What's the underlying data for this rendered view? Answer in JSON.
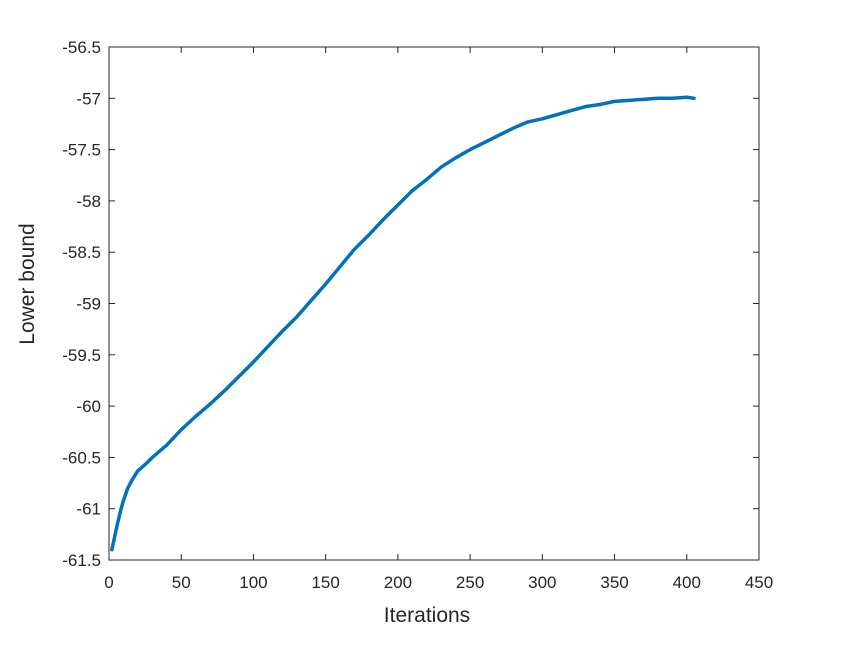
{
  "chart_data": {
    "type": "line",
    "title": "",
    "xlabel": "Iterations",
    "ylabel": "Lower bound",
    "xlim": [
      0,
      450
    ],
    "ylim": [
      -61.5,
      -56.5
    ],
    "xticks": [
      0,
      50,
      100,
      150,
      200,
      250,
      300,
      350,
      400,
      450
    ],
    "yticks": [
      -56.5,
      -57,
      -57.5,
      -58,
      -58.5,
      -59,
      -59.5,
      -60,
      -60.5,
      -61,
      -61.5
    ],
    "xtick_labels": [
      "0",
      "50",
      "100",
      "150",
      "200",
      "250",
      "300",
      "350",
      "400",
      "450"
    ],
    "ytick_labels": [
      "-56.5",
      "-57",
      "-57.5",
      "-58",
      "-58.5",
      "-59",
      "-59.5",
      "-60",
      "-60.5",
      "-61",
      "-61.5"
    ],
    "grid": false,
    "legend": "none",
    "series": [
      {
        "color": "#0072BD",
        "x": [
          2,
          5,
          8,
          10,
          13,
          16,
          20,
          25,
          30,
          40,
          50,
          60,
          70,
          80,
          90,
          100,
          110,
          120,
          130,
          140,
          150,
          160,
          170,
          180,
          190,
          200,
          210,
          220,
          230,
          240,
          250,
          260,
          270,
          280,
          290,
          300,
          310,
          320,
          330,
          340,
          350,
          360,
          370,
          380,
          390,
          400,
          405
        ],
        "y": [
          -61.4,
          -61.2,
          -61.02,
          -60.92,
          -60.8,
          -60.72,
          -60.63,
          -60.57,
          -60.5,
          -60.38,
          -60.23,
          -60.1,
          -59.98,
          -59.85,
          -59.71,
          -59.57,
          -59.42,
          -59.27,
          -59.13,
          -58.97,
          -58.81,
          -58.64,
          -58.47,
          -58.33,
          -58.18,
          -58.04,
          -57.9,
          -57.79,
          -57.67,
          -57.58,
          -57.5,
          -57.43,
          -57.36,
          -57.29,
          -57.23,
          -57.2,
          -57.16,
          -57.12,
          -57.08,
          -57.06,
          -57.03,
          -57.02,
          -57.01,
          -57.0,
          -57.0,
          -56.99,
          -57.0
        ]
      }
    ]
  }
}
